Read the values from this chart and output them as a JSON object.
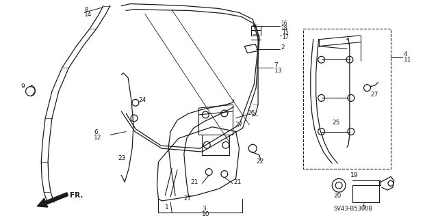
{
  "bg_color": "#ffffff",
  "diagram_color": "#1a1a1a",
  "fig_width": 6.4,
  "fig_height": 3.19,
  "diagram_code": "SV43-B5300B",
  "fr_label": "FR."
}
